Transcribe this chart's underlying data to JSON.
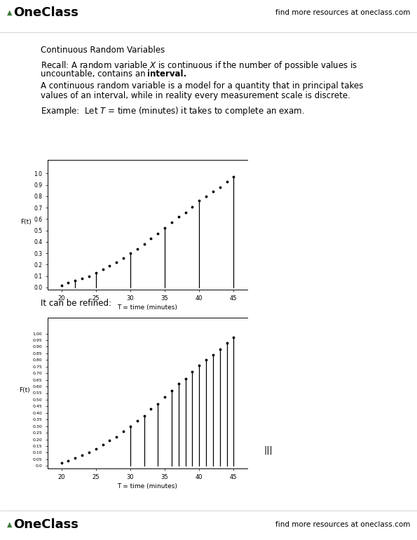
{
  "title_text": "Continuous Random Variables",
  "recall_line1": "Recall: A random variable $X$ is continuous if the number of possible values is",
  "recall_line2a": "uncountable, contains an ",
  "recall_line2b": "interval.",
  "para2_line1": "A continuous random variable is a model for a quantity that in principal takes",
  "para2_line2": "values of an interval, while in reality every measurement scale is discrete.",
  "example_line": "Example:  Let $T$ = time (minutes) it takes to complete an exam.",
  "refine_text": "It can be refined:",
  "header_left": "OneClass",
  "header_right": "find more resources at oneclass.com",
  "footer_left": "OneClass",
  "footer_right": "find more resources at oneclass.com",
  "chart1": {
    "x_points": [
      20,
      21,
      22,
      23,
      24,
      25,
      26,
      27,
      28,
      29,
      30,
      31,
      32,
      33,
      34,
      35,
      36,
      37,
      38,
      39,
      40,
      41,
      42,
      43,
      44,
      45
    ],
    "y_points": [
      0.02,
      0.04,
      0.06,
      0.08,
      0.1,
      0.13,
      0.16,
      0.19,
      0.22,
      0.26,
      0.3,
      0.34,
      0.38,
      0.43,
      0.47,
      0.52,
      0.57,
      0.62,
      0.66,
      0.71,
      0.76,
      0.8,
      0.84,
      0.88,
      0.93,
      0.97
    ],
    "stem_positions": [
      22,
      25,
      30,
      35,
      40,
      45
    ],
    "xlabel": "T = time (minutes)",
    "ylabel": "F(t)",
    "xlim": [
      18,
      47
    ],
    "ylim": [
      -0.02,
      1.12
    ],
    "xticks": [
      20,
      25,
      30,
      35,
      40,
      45
    ],
    "ytick_labels": [
      "0.0",
      "0.1",
      "0.2",
      "0.3",
      "0.4",
      "0.5",
      "0.6",
      "0.7",
      "0.8",
      "0.9",
      "1.0"
    ],
    "ytick_vals": [
      0.0,
      0.1,
      0.2,
      0.3,
      0.4,
      0.5,
      0.6,
      0.7,
      0.8,
      0.9,
      1.0
    ]
  },
  "chart2": {
    "x_points": [
      20,
      21,
      22,
      23,
      24,
      25,
      26,
      27,
      28,
      29,
      30,
      31,
      32,
      33,
      34,
      35,
      36,
      37,
      38,
      39,
      40,
      41,
      42,
      43,
      44,
      45
    ],
    "y_points": [
      0.02,
      0.04,
      0.06,
      0.08,
      0.1,
      0.13,
      0.16,
      0.19,
      0.22,
      0.26,
      0.3,
      0.34,
      0.38,
      0.43,
      0.47,
      0.52,
      0.57,
      0.62,
      0.66,
      0.71,
      0.76,
      0.8,
      0.84,
      0.88,
      0.93,
      0.97
    ],
    "stem_positions": [
      30,
      32,
      34,
      36,
      37,
      38,
      39,
      40,
      41,
      42,
      43,
      44,
      45
    ],
    "xlabel": "T = time (minutes)",
    "ylabel": "F(t)",
    "xlim": [
      18,
      47
    ],
    "ylim": [
      -0.02,
      1.12
    ],
    "xticks": [
      20,
      25,
      30,
      35,
      40,
      45
    ],
    "ytick_labels": [
      "0.0",
      "0.05",
      "0.10",
      "0.15",
      "0.20",
      "0.25",
      "0.30",
      "0.35",
      "0.40",
      "0.45",
      "0.50",
      "0.55",
      "0.60",
      "0.65",
      "0.70",
      "0.75",
      "0.80",
      "0.85",
      "0.90",
      "0.95",
      "1.00"
    ],
    "ytick_vals": [
      0.0,
      0.05,
      0.1,
      0.15,
      0.2,
      0.25,
      0.3,
      0.35,
      0.4,
      0.45,
      0.5,
      0.55,
      0.6,
      0.65,
      0.7,
      0.75,
      0.8,
      0.85,
      0.9,
      0.95,
      1.0
    ]
  },
  "annotation_text": "|||",
  "background_color": "#ffffff",
  "text_color": "#000000",
  "oneclass_green": "#3a7a3a"
}
